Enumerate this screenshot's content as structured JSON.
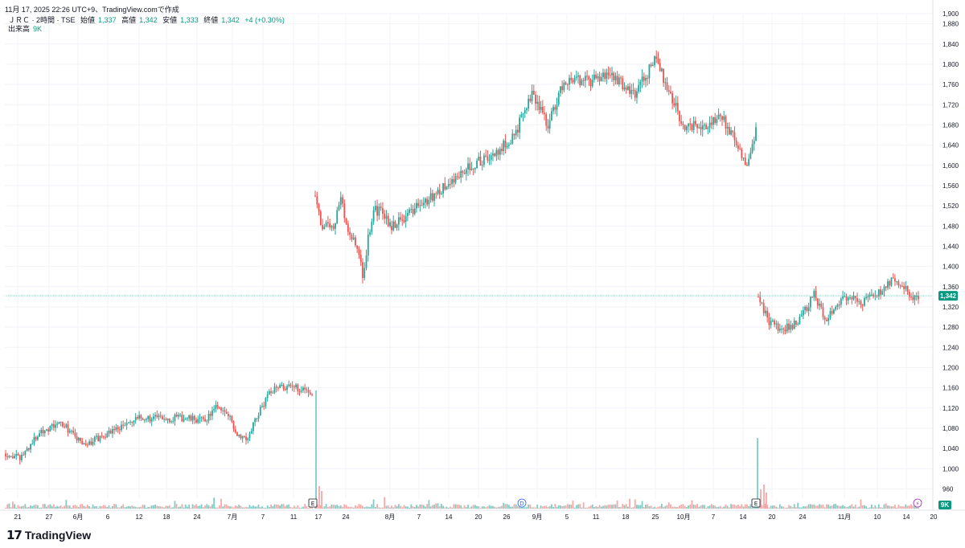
{
  "header": {
    "timestamp_line": "11月 17, 2025 22:26 UTC+9、TradingView.comで作成",
    "symbol_line": "ＪＲＣ · 2時間 · TSE",
    "ohlc": [
      {
        "label": "始値",
        "value": "1,337"
      },
      {
        "label": "高値",
        "value": "1,342"
      },
      {
        "label": "安値",
        "value": "1,333"
      },
      {
        "label": "終値",
        "value": "1,342"
      }
    ],
    "change": "+4 (+0.30%)",
    "volume_label": "出来高",
    "volume_value": "9K"
  },
  "brand": {
    "name": "TradingView"
  },
  "colors": {
    "up": "#26a69a",
    "down": "#ef5350",
    "volume_up": "#80cbc4",
    "volume_down": "#f7a9a7",
    "price_tag": "#089981",
    "grid": "#f0f3fa",
    "event_badge_blue": "#2962ff",
    "event_badge_purple": "#9c27b0"
  },
  "chart_data": {
    "type": "candlestick",
    "interval": "2時間",
    "ylim": [
      940,
      1900
    ],
    "y_ticks": [
      "1,900",
      "1,880",
      "1,840",
      "1,800",
      "1,760",
      "1,720",
      "1,680",
      "1,640",
      "1,600",
      "1,560",
      "1,520",
      "1,480",
      "1,440",
      "1,400",
      "1,360",
      "1,320",
      "1,280",
      "1,240",
      "1,200",
      "1,160",
      "1,120",
      "1,080",
      "1,040",
      "1,000",
      "960"
    ],
    "x_ticks": [
      "21",
      "27",
      "6月",
      "6",
      "12",
      "18",
      "24",
      "7月",
      "7",
      "11",
      "17",
      "24",
      "8月",
      "7",
      "14",
      "20",
      "26",
      "9月",
      "5",
      "11",
      "18",
      "25",
      "10月",
      "7",
      "14",
      "20",
      "24",
      "11月",
      "10",
      "14",
      "20"
    ],
    "last_price": "1,342",
    "last_volume": "9K",
    "events": [
      {
        "label": "E",
        "position": "17",
        "kind": "earnings"
      },
      {
        "label": "D",
        "position": "26",
        "kind": "dividend"
      },
      {
        "label": "E",
        "position": "14",
        "kind": "earnings"
      },
      {
        "label": "⚡",
        "position": "14",
        "kind": "news"
      }
    ],
    "segments": [
      {
        "period": "5/21-7/17",
        "start": 1030,
        "anchors": [
          [
            0,
            1030
          ],
          [
            10,
            1020
          ],
          [
            25,
            1075
          ],
          [
            40,
            1090
          ],
          [
            55,
            1045
          ],
          [
            75,
            1075
          ],
          [
            95,
            1100
          ],
          [
            110,
            1100
          ],
          [
            125,
            1100
          ],
          [
            140,
            1095
          ],
          [
            150,
            1125
          ],
          [
            158,
            1100
          ],
          [
            163,
            1070
          ],
          [
            170,
            1060
          ],
          [
            180,
            1120
          ],
          [
            190,
            1165
          ],
          [
            200,
            1160
          ],
          [
            210,
            1160
          ],
          [
            216,
            1150
          ]
        ]
      },
      {
        "period": "7/17-8/7",
        "start": 1540,
        "anchors": [
          [
            0,
            1540
          ],
          [
            8,
            1480
          ],
          [
            16,
            1480
          ],
          [
            24,
            1485
          ],
          [
            30,
            1540
          ],
          [
            38,
            1480
          ],
          [
            46,
            1450
          ],
          [
            52,
            1430
          ],
          [
            58,
            1370
          ],
          [
            62,
            1440
          ],
          [
            70,
            1510
          ],
          [
            80,
            1510
          ],
          [
            90,
            1480
          ]
        ]
      },
      {
        "period": "8/7-10/14",
        "start": 1480,
        "anchors": [
          [
            0,
            1480
          ],
          [
            20,
            1525
          ],
          [
            35,
            1560
          ],
          [
            50,
            1600
          ],
          [
            65,
            1620
          ],
          [
            78,
            1660
          ],
          [
            90,
            1740
          ],
          [
            100,
            1680
          ],
          [
            110,
            1770
          ],
          [
            125,
            1765
          ],
          [
            140,
            1780
          ],
          [
            155,
            1740
          ],
          [
            168,
            1810
          ],
          [
            178,
            1740
          ],
          [
            185,
            1680
          ],
          [
            200,
            1680
          ],
          [
            210,
            1700
          ],
          [
            220,
            1640
          ],
          [
            226,
            1600
          ],
          [
            232,
            1665
          ]
        ]
      },
      {
        "period": "10/14-11/17",
        "start": 1340,
        "anchors": [
          [
            0,
            1340
          ],
          [
            8,
            1290
          ],
          [
            18,
            1275
          ],
          [
            30,
            1290
          ],
          [
            42,
            1345
          ],
          [
            50,
            1295
          ],
          [
            58,
            1325
          ],
          [
            68,
            1340
          ],
          [
            78,
            1330
          ],
          [
            90,
            1345
          ],
          [
            100,
            1370
          ],
          [
            110,
            1360
          ],
          [
            116,
            1330
          ],
          [
            120,
            1340
          ]
        ]
      }
    ]
  }
}
